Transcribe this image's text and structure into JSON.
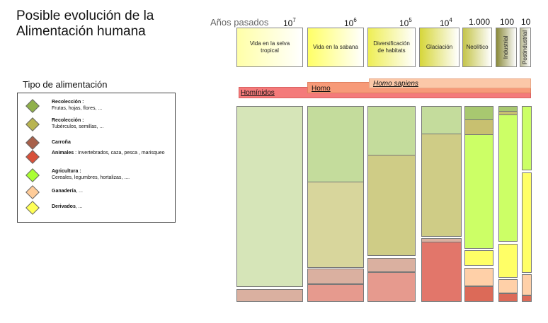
{
  "title": {
    "line1": "Posible evolución de la",
    "line2": "Alimentación humana"
  },
  "anos_label": "Años pasados",
  "scale": [
    {
      "base": "10",
      "exp": "7"
    },
    {
      "base": "10",
      "exp": "6"
    },
    {
      "base": "10",
      "exp": "5"
    },
    {
      "base": "10",
      "exp": "4"
    },
    {
      "base": "1.000",
      "exp": ""
    },
    {
      "base": "100",
      "exp": ""
    },
    {
      "base": "10",
      "exp": ""
    }
  ],
  "periods": [
    {
      "label": "Vida en la selva tropical",
      "color": "#ffffa8"
    },
    {
      "label": "Vida en la sabana",
      "color": "#ffff66"
    },
    {
      "label": "Diversificación de habitats",
      "color": "#eeee55"
    },
    {
      "label": "Glaciación",
      "color": "#d6d63a"
    },
    {
      "label": "Neolítico",
      "color": "#c4c44a"
    },
    {
      "label": "Industrial",
      "color": "#8a8a3a"
    },
    {
      "label": "Postindustrial",
      "color": "#b8b890"
    }
  ],
  "bands": {
    "hominidos": "Homínidos",
    "homo": "Homo",
    "homo_sapiens": "Homo sapiens"
  },
  "legend": {
    "title": "Tipo de alimentación",
    "items": [
      {
        "bold": "Recolección :",
        "detail": "Frutas, hojas, flores, ...",
        "color": "#8fb04a"
      },
      {
        "bold": "Recolección :",
        "detail": "Tubérculos, semillas, ...",
        "color": "#b8b450"
      },
      {
        "bold": "Carroña",
        "detail": "",
        "color": "#a8604a"
      },
      {
        "bold": "Animales",
        "detail": " : Invertebrados, caza, pesca , marisqueo",
        "color": "#d8503a"
      },
      {
        "bold": "Agricultura :",
        "detail": "Cereales, legumbres, hortalizas, ....",
        "color": "#aaff33"
      },
      {
        "bold": "Ganadería",
        "detail": ", ...",
        "color": "#ffcc99"
      },
      {
        "bold": "Derivados",
        "detail": ", ...",
        "color": "#ffff55"
      }
    ]
  },
  "colors": {
    "frutas": "#d6e5b8",
    "frutas_dark": "#c4dc9c",
    "tuberculos": "#d8d69c",
    "tuberculos_dark": "#cfcc86",
    "carrona": "#dab0a0",
    "animales": "#e69a8e",
    "animales_dark": "#e2766a",
    "agricultura": "#ccff66",
    "ganaderia": "#ffd0a8",
    "derivados": "#ffff66",
    "frutas_late": "#a8c870",
    "tuberculos_late": "#c8c070",
    "animales_late": "#dc6a58"
  }
}
